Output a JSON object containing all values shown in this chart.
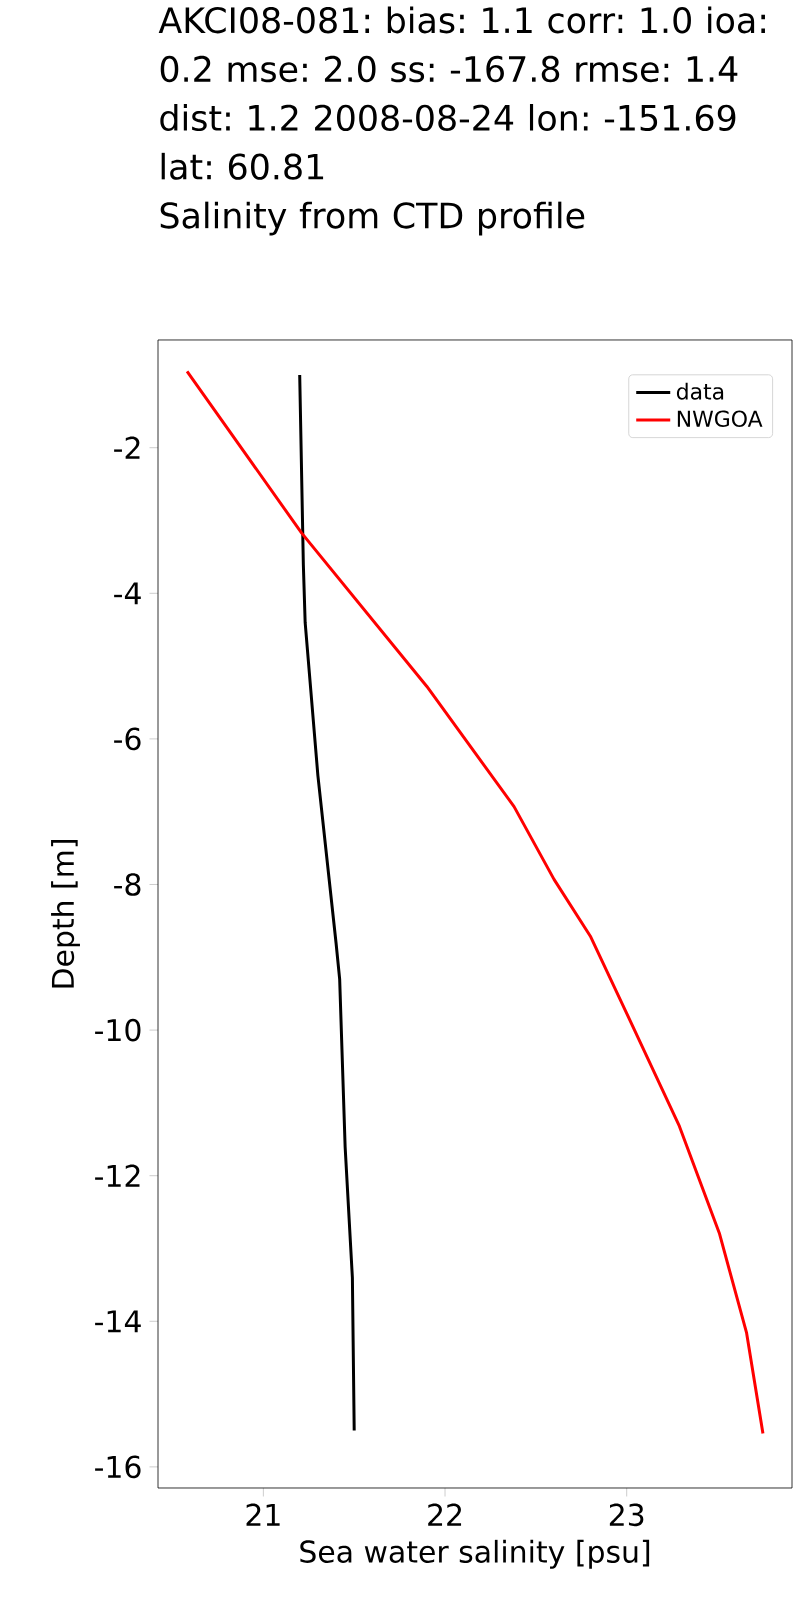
{
  "chart_data": {
    "type": "line",
    "title": "AKCI08-081: bias: 1.1  corr: 1.0  ioa: 0.2  mse: 2.0  ss: -167.8  rmse: 1.4  dist: 1.2 2008-08-24 lon: -151.69 lat: 60.81",
    "subtitle": "Salinity from CTD profile",
    "xlabel": "Sea water salinity [psu]",
    "ylabel": "Depth [m]",
    "series": [
      {
        "name": "data",
        "color": "#000000",
        "x": [
          21.2,
          21.22,
          21.23,
          21.3,
          21.4,
          21.42,
          21.45,
          21.49,
          21.5
        ],
        "values": [
          -1.0,
          -3.6,
          -4.4,
          -6.5,
          -8.8,
          -9.3,
          -11.6,
          -13.4,
          -15.5
        ]
      },
      {
        "name": "NWGOA",
        "color": "#ff0000",
        "x": [
          20.58,
          21.21,
          21.9,
          22.38,
          22.6,
          22.8,
          23.0,
          23.29,
          23.51,
          23.66,
          23.75
        ],
        "values": [
          -0.95,
          -3.17,
          -5.28,
          -6.93,
          -7.93,
          -8.71,
          -9.77,
          -11.32,
          -12.79,
          -14.16,
          -15.54
        ]
      }
    ],
    "xlim": [
      20.42,
      23.91
    ],
    "ylim": [
      -16.29,
      -0.52
    ],
    "xticks": [
      21,
      22,
      23
    ],
    "yticks": [
      -2,
      -4,
      -6,
      -8,
      -10,
      -12,
      -14,
      -16
    ],
    "legend": "top right",
    "grid": false,
    "marker": "none",
    "line_style": "solid"
  }
}
